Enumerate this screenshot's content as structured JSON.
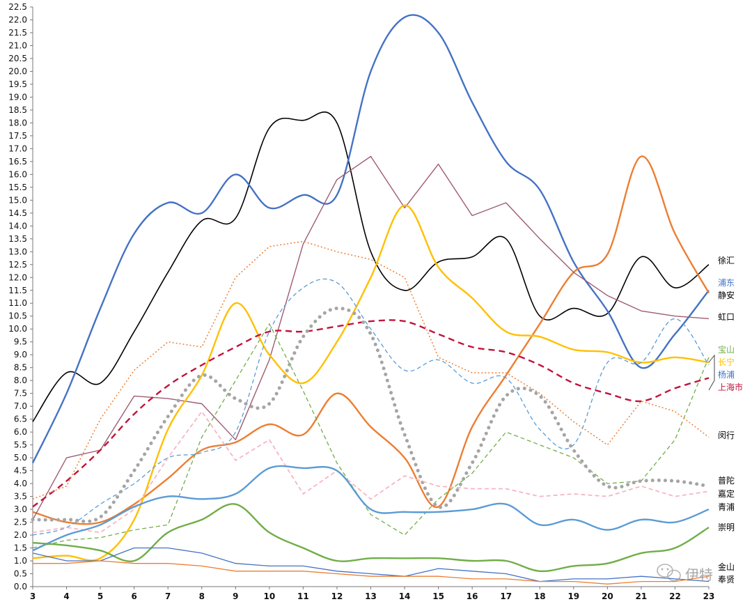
{
  "chart_data": {
    "type": "line",
    "title": "",
    "xlabel": "",
    "ylabel": "",
    "x": [
      3,
      4,
      5,
      6,
      7,
      8,
      9,
      10,
      11,
      12,
      13,
      14,
      15,
      16,
      17,
      18,
      19,
      20,
      21,
      22,
      23
    ],
    "xlim": [
      3,
      23
    ],
    "ylim": [
      0,
      22.5
    ],
    "y_ticks": [
      "0.0",
      "0.5",
      "1.0",
      "1.5",
      "2.0",
      "2.5",
      "3.0",
      "3.5",
      "4.0",
      "4.5",
      "5.0",
      "5.5",
      "6.0",
      "6.5",
      "7.0",
      "7.5",
      "8.0",
      "8.5",
      "9.0",
      "9.5",
      "10.0",
      "10.5",
      "11.0",
      "11.5",
      "12.0",
      "12.5",
      "13.0",
      "13.5",
      "14.0",
      "14.5",
      "15.0",
      "15.5",
      "16.0",
      "16.5",
      "17.0",
      "17.5",
      "18.0",
      "18.5",
      "19.0",
      "19.5",
      "20.0",
      "20.5",
      "21.0",
      "21.5",
      "22.0",
      "22.5"
    ],
    "x_ticks": [
      "3",
      "4",
      "5",
      "6",
      "7",
      "8",
      "9",
      "10",
      "11",
      "12",
      "13",
      "14",
      "15",
      "16",
      "17",
      "18",
      "19",
      "20",
      "21",
      "22",
      "23"
    ],
    "grid": false,
    "legend": "end-of-line labels on the right",
    "series": [
      {
        "name": "徐汇",
        "color": "#000000",
        "style": "solid",
        "width": 1.6,
        "smooth": true,
        "values": [
          6.4,
          8.3,
          7.9,
          9.9,
          12.2,
          14.2,
          14.3,
          17.8,
          18.1,
          18.0,
          13.0,
          11.5,
          12.6,
          12.8,
          13.5,
          10.5,
          10.8,
          10.6,
          12.8,
          11.6,
          12.5
        ]
      },
      {
        "name": "浦东",
        "color": "#4472c4",
        "style": "solid",
        "width": 2.4,
        "smooth": true,
        "values": [
          4.8,
          7.5,
          10.8,
          13.7,
          14.9,
          14.5,
          16.0,
          14.7,
          15.2,
          15.2,
          20.0,
          22.1,
          21.5,
          18.8,
          16.5,
          15.4,
          12.6,
          10.7,
          8.5,
          9.8,
          11.5
        ]
      },
      {
        "name": "静安",
        "color": "#ed7d31",
        "style": "solid",
        "width": 2.4,
        "smooth": true,
        "values": [
          2.9,
          2.5,
          2.5,
          3.2,
          4.2,
          5.3,
          5.6,
          6.3,
          5.9,
          7.5,
          6.2,
          5.0,
          3.1,
          6.2,
          8.2,
          10.2,
          12.2,
          12.9,
          16.7,
          13.7,
          11.4
        ]
      },
      {
        "name": "虹口",
        "color": "#9e5b73",
        "style": "solid",
        "width": 1.4,
        "smooth": false,
        "values": [
          2.6,
          5.0,
          5.3,
          7.4,
          7.3,
          7.1,
          5.7,
          8.8,
          13.3,
          15.8,
          16.7,
          14.7,
          16.4,
          14.4,
          14.9,
          13.5,
          12.2,
          11.3,
          10.7,
          10.5,
          10.4
        ]
      },
      {
        "name": "宝山",
        "color": "#70ad47",
        "style": "dashed",
        "width": 1.3,
        "smooth": false,
        "values": [
          1.5,
          1.8,
          1.9,
          2.2,
          2.4,
          5.8,
          8.0,
          10.2,
          7.6,
          4.8,
          2.8,
          2.0,
          3.4,
          4.4,
          6.0,
          5.5,
          5.0,
          4.0,
          4.1,
          5.7,
          8.9
        ]
      },
      {
        "name": "长宁",
        "color": "#ffc000",
        "style": "solid",
        "width": 2.4,
        "smooth": true,
        "values": [
          1.1,
          1.2,
          1.1,
          2.6,
          6.1,
          8.2,
          11.0,
          9.0,
          7.9,
          9.5,
          12.0,
          14.8,
          12.4,
          11.2,
          9.9,
          9.7,
          9.2,
          9.1,
          8.7,
          8.9,
          8.7
        ]
      },
      {
        "name": "杨浦",
        "color": "#5b9bd5",
        "style": "dashed",
        "width": 1.3,
        "smooth": true,
        "values": [
          2.0,
          2.3,
          3.2,
          4.0,
          5.0,
          5.2,
          6.0,
          9.9,
          11.6,
          11.8,
          10.0,
          8.4,
          8.8,
          7.9,
          8.1,
          6.1,
          5.5,
          8.7,
          8.7,
          10.4,
          8.6
        ]
      },
      {
        "name": "上海市",
        "color": "#c0143c",
        "style": "dashed",
        "width": 2.4,
        "smooth": true,
        "values": [
          3.1,
          4.1,
          5.3,
          6.7,
          7.8,
          8.6,
          9.3,
          9.9,
          9.9,
          10.1,
          10.3,
          10.3,
          9.8,
          9.3,
          9.1,
          8.6,
          7.9,
          7.5,
          7.2,
          7.7,
          8.1
        ]
      },
      {
        "name": "闵行",
        "color": "#ed7d31",
        "style": "dotted",
        "width": 1.5,
        "smooth": false,
        "values": [
          3.4,
          3.9,
          6.5,
          8.4,
          9.5,
          9.3,
          12.0,
          13.2,
          13.4,
          13.0,
          12.7,
          12.0,
          8.9,
          8.3,
          8.3,
          7.5,
          6.4,
          5.5,
          7.2,
          6.8,
          5.8
        ]
      },
      {
        "name": "普陀",
        "color": "#a5a5a5",
        "style": "fat-dotted",
        "width": 5,
        "smooth": true,
        "values": [
          2.6,
          2.6,
          2.7,
          4.5,
          6.6,
          8.2,
          7.3,
          7.1,
          9.7,
          10.8,
          9.8,
          5.9,
          3.1,
          4.8,
          7.4,
          7.4,
          5.3,
          3.9,
          4.1,
          4.1,
          3.9
        ]
      },
      {
        "name": "嘉定",
        "color": "#f4b6c2",
        "style": "dashed",
        "width": 1.8,
        "smooth": false,
        "values": [
          2.1,
          2.3,
          2.1,
          3.0,
          5.0,
          6.8,
          4.9,
          5.7,
          3.6,
          4.5,
          3.4,
          4.3,
          3.9,
          3.8,
          3.8,
          3.5,
          3.6,
          3.5,
          3.9,
          3.5,
          3.7
        ]
      },
      {
        "name": "青浦",
        "color": "#5b9bd5",
        "style": "solid",
        "width": 2.4,
        "smooth": true,
        "values": [
          1.4,
          2.0,
          2.4,
          3.1,
          3.5,
          3.4,
          3.6,
          4.6,
          4.6,
          4.5,
          3.0,
          2.9,
          2.9,
          3.0,
          3.2,
          2.4,
          2.6,
          2.2,
          2.6,
          2.5,
          3.0
        ]
      },
      {
        "name": "崇明",
        "color": "#70ad47",
        "style": "solid",
        "width": 2.4,
        "smooth": true,
        "values": [
          1.7,
          1.6,
          1.4,
          1.0,
          2.1,
          2.6,
          3.2,
          2.1,
          1.5,
          1.0,
          1.1,
          1.1,
          1.1,
          1.0,
          1.0,
          0.6,
          0.8,
          0.9,
          1.3,
          1.5,
          2.3
        ]
      },
      {
        "name": "金山",
        "color": "#4472c4",
        "style": "solid",
        "width": 1.3,
        "smooth": false,
        "values": [
          1.3,
          1.0,
          1.0,
          1.5,
          1.5,
          1.3,
          0.9,
          0.8,
          0.8,
          0.6,
          0.5,
          0.4,
          0.7,
          0.6,
          0.5,
          0.2,
          0.3,
          0.3,
          0.4,
          0.3,
          0.2
        ]
      },
      {
        "name": "奉贤",
        "color": "#ed7d31",
        "style": "solid",
        "width": 1.3,
        "smooth": false,
        "values": [
          0.9,
          0.9,
          1.0,
          0.9,
          0.9,
          0.8,
          0.6,
          0.6,
          0.6,
          0.5,
          0.4,
          0.4,
          0.4,
          0.3,
          0.3,
          0.2,
          0.2,
          0.1,
          0.2,
          0.2,
          0.4
        ]
      }
    ]
  },
  "end_labels": [
    {
      "series": "徐汇",
      "text": "徐汇",
      "color": "#000000"
    },
    {
      "series": "浦东",
      "text": "浦东",
      "color": "#4472c4"
    },
    {
      "series": "静安",
      "text": "静安",
      "color": "#000000"
    },
    {
      "series": "虹口",
      "text": "虹口",
      "color": "#000000"
    },
    {
      "series": "宝山",
      "text": "宝山",
      "color": "#70ad47"
    },
    {
      "series": "长宁",
      "text": "长宁",
      "color": "#ffc000"
    },
    {
      "series": "杨浦",
      "text": "杨浦",
      "color": "#4472c4"
    },
    {
      "series": "上海市",
      "text": "上海市",
      "color": "#c0143c"
    },
    {
      "series": "闵行",
      "text": "闵行",
      "color": "#000000"
    },
    {
      "series": "普陀",
      "text": "普陀",
      "color": "#000000"
    },
    {
      "series": "嘉定",
      "text": "嘉定",
      "color": "#000000"
    },
    {
      "series": "青浦",
      "text": "青浦",
      "color": "#000000"
    },
    {
      "series": "崇明",
      "text": "崇明",
      "color": "#000000"
    },
    {
      "series": "金山",
      "text": "金山",
      "color": "#000000"
    },
    {
      "series": "奉贤",
      "text": "奉贤",
      "color": "#000000"
    }
  ],
  "watermark": {
    "icon": "wechat-icon",
    "text": "伊特"
  }
}
